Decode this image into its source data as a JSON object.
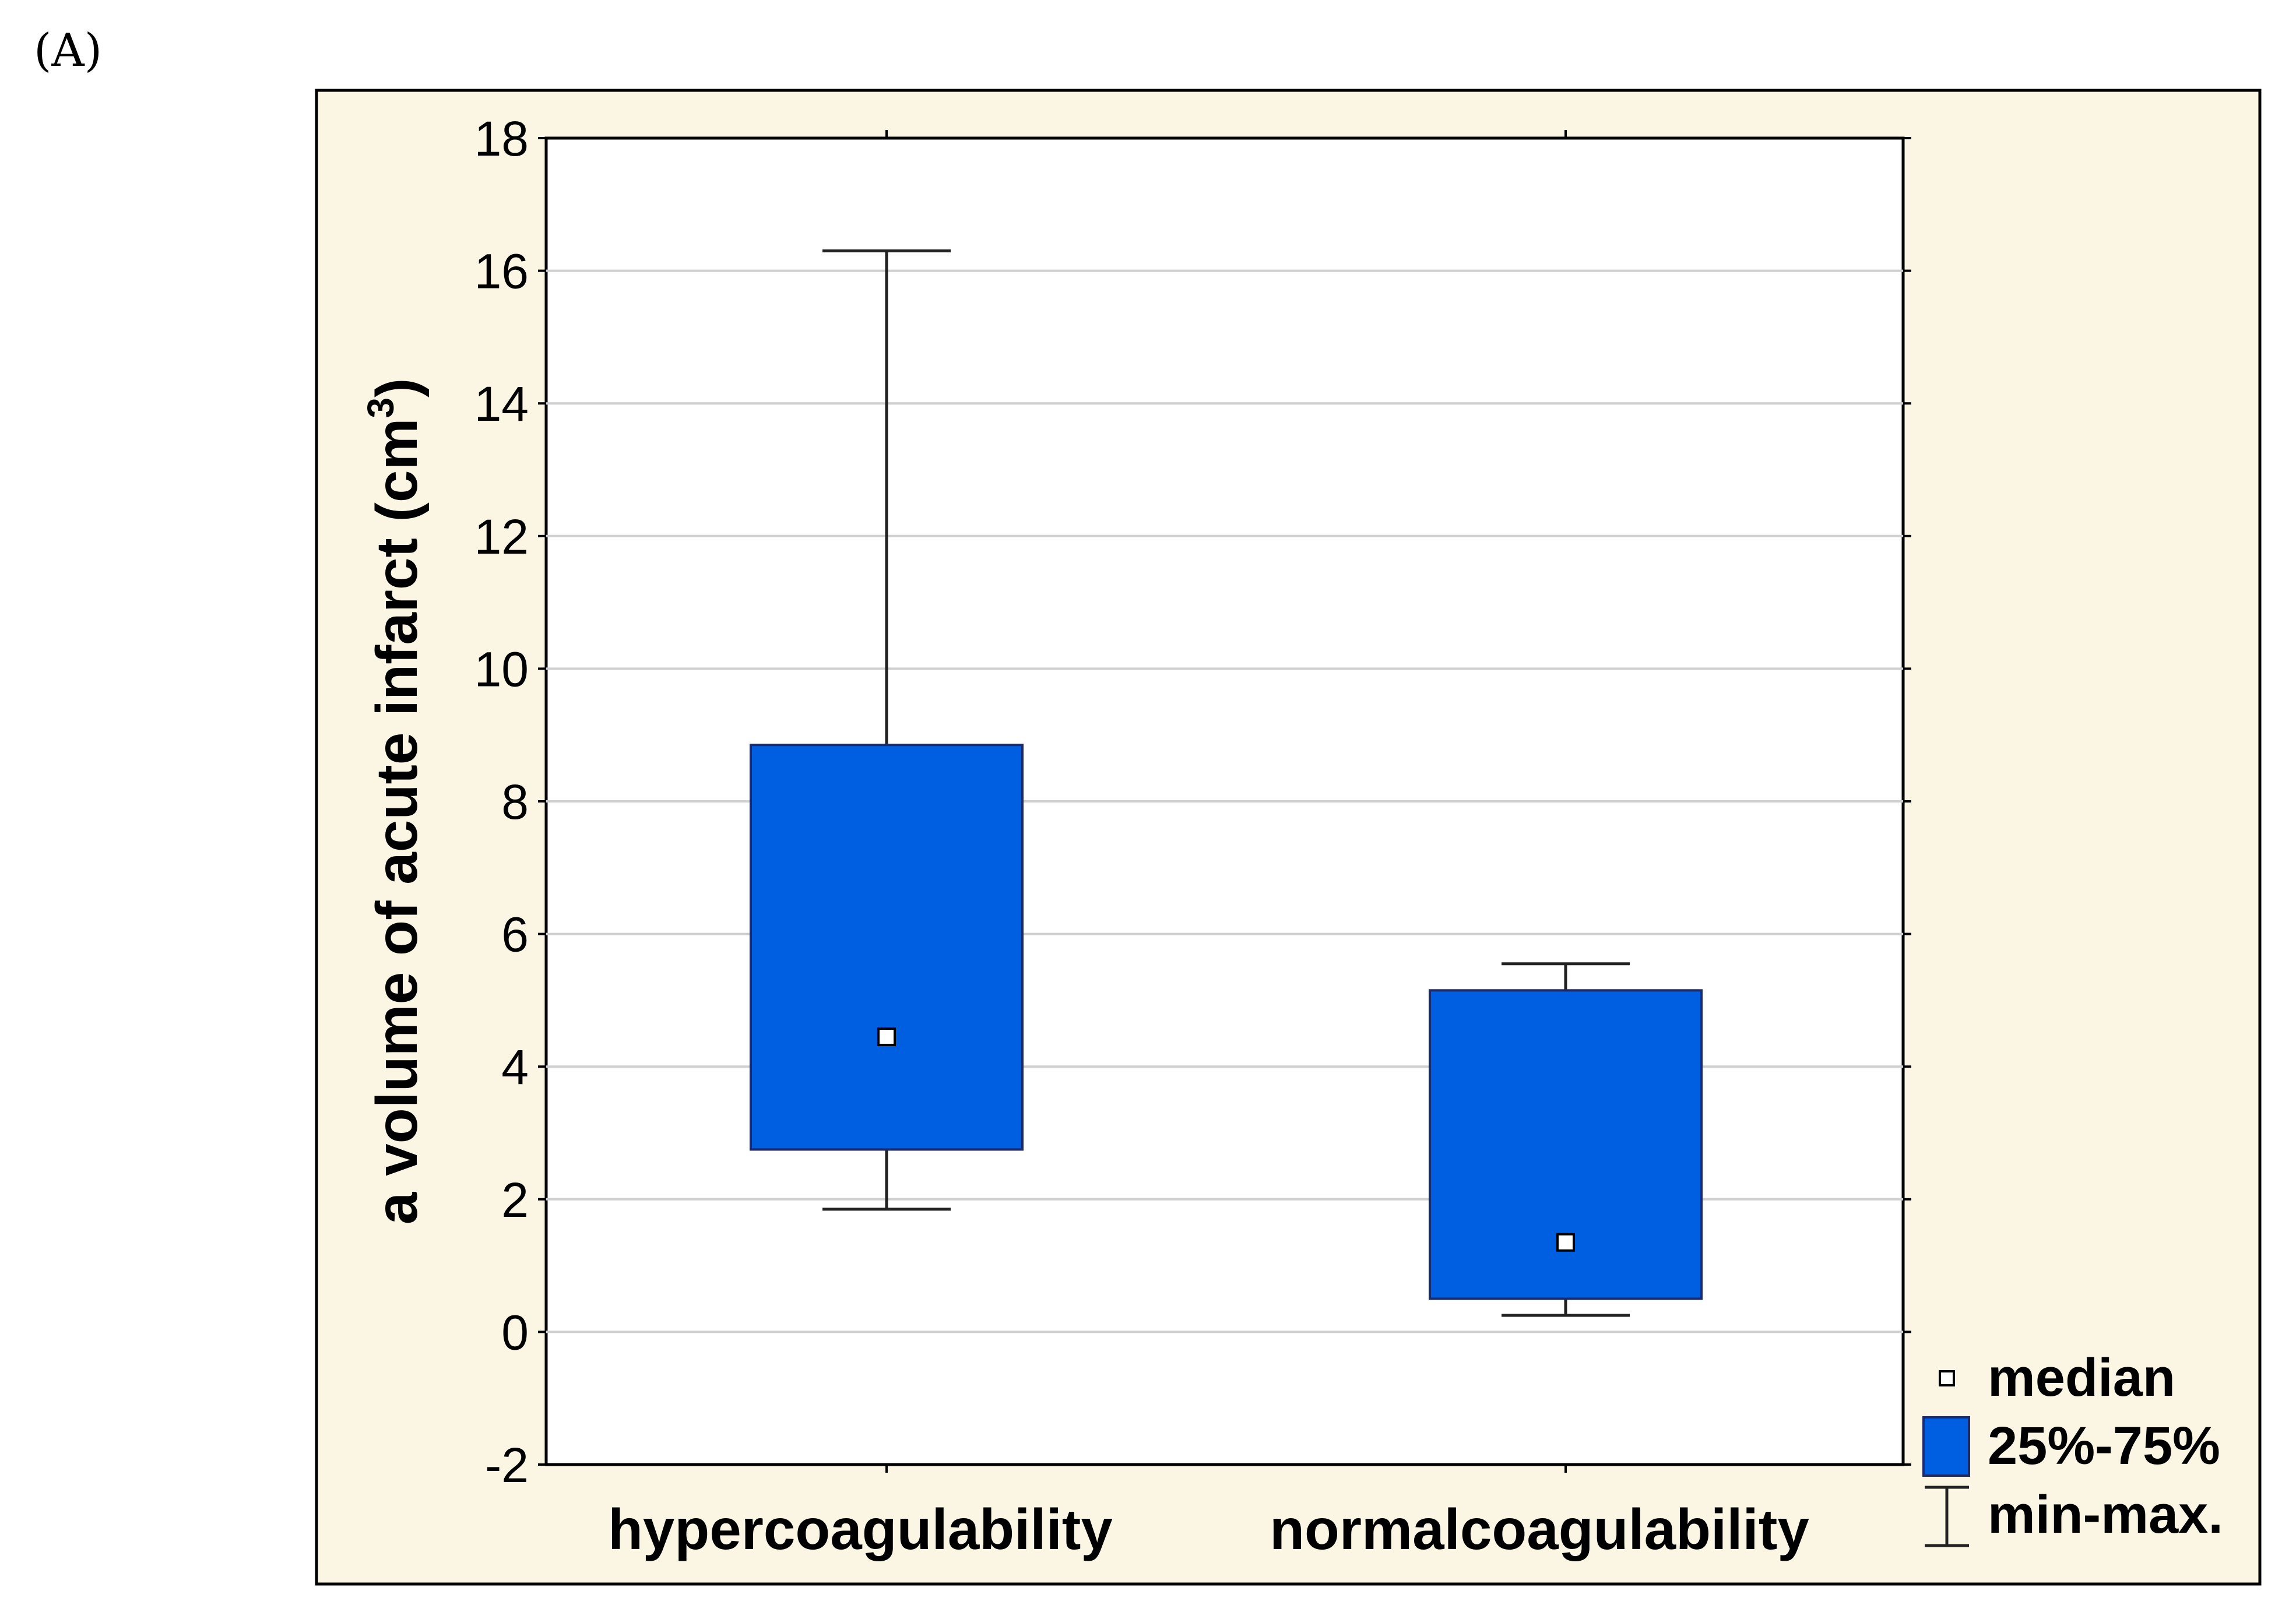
{
  "panel_label": "(A)",
  "chart_data": {
    "type": "boxplot",
    "title": "",
    "xlabel": "",
    "ylabel": "a volume of acute infarct (cm3)",
    "ylabel_main": "a volume of acute infarct (cm",
    "ylabel_sup": "3",
    "ylabel_close": ")",
    "ylim": [
      -2,
      18
    ],
    "yticks": [
      -2,
      0,
      2,
      4,
      6,
      8,
      10,
      12,
      14,
      16,
      18
    ],
    "ytick_labels": [
      "-2",
      "0",
      "2",
      "4",
      "6",
      "8",
      "10",
      "12",
      "14",
      "16",
      "18"
    ],
    "grid": true,
    "categories": [
      "hypercoagulability",
      "normal coagulability"
    ],
    "category_labels": [
      "hypercoagulability",
      "normalcoagulability"
    ],
    "series": [
      {
        "name": "hypercoagulability",
        "min": 1.85,
        "q1": 2.75,
        "median": 4.45,
        "q3": 8.85,
        "max": 16.3
      },
      {
        "name": "normal coagulability",
        "min": 0.25,
        "q1": 0.5,
        "median": 1.35,
        "q3": 5.15,
        "max": 5.55
      }
    ],
    "legend": {
      "position": "right-bottom",
      "entries": [
        {
          "key": "median",
          "label": "median"
        },
        {
          "key": "box",
          "label": "25%-75%"
        },
        {
          "key": "whisker",
          "label": "min-max."
        }
      ]
    },
    "colors": {
      "box_fill": "#005FE0",
      "box_stroke": "#1a2a6a",
      "outer_background": "#FBF5E3",
      "plot_background": "#FFFFFF",
      "grid": "#cfcfcf",
      "axis": "#000000"
    }
  }
}
